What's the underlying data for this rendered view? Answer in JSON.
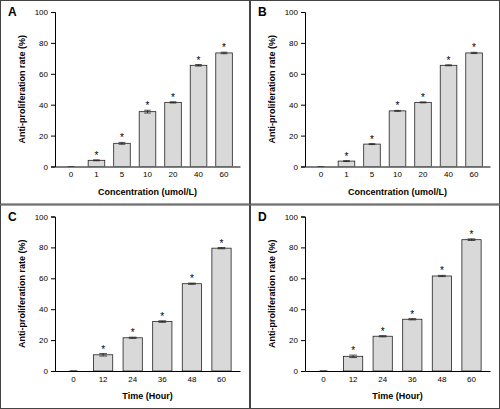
{
  "chart_data": [
    {
      "type": "bar",
      "title": "A",
      "x_label": "Concentration (umol/L)",
      "y_label": "Anti-proliferation rate (%)",
      "categories": [
        "0",
        "1",
        "5",
        "10",
        "20",
        "40",
        "60"
      ],
      "values": [
        0,
        4,
        15,
        35.5,
        41.5,
        65.5,
        73.5
      ],
      "errors": [
        0,
        0.3,
        0.6,
        0.9,
        0.4,
        0.5,
        0.5
      ],
      "annotations": [
        null,
        "*",
        "*",
        "*",
        "*",
        "*",
        "*"
      ],
      "color": "#d9d9d9",
      "ylim": [
        0,
        100
      ],
      "yticks": [
        0,
        20,
        40,
        60,
        80,
        100
      ]
    },
    {
      "type": "bar",
      "title": "B",
      "x_label": "Concentration (umol/L)",
      "y_label": "Anti-proliferation rate (%)",
      "categories": [
        "0",
        "1",
        "5",
        "10",
        "20",
        "40",
        "60"
      ],
      "values": [
        0,
        3.5,
        14.5,
        36,
        41.5,
        65.5,
        73.5
      ],
      "errors": [
        0,
        0.3,
        0.3,
        0.3,
        0.3,
        0.3,
        0.4
      ],
      "annotations": [
        null,
        "*",
        "*",
        "*",
        "*",
        "*",
        "*"
      ],
      "color": "#d9d9d9",
      "ylim": [
        0,
        100
      ],
      "yticks": [
        0,
        20,
        40,
        60,
        80,
        100
      ]
    },
    {
      "type": "bar",
      "title": "C",
      "x_label": "Time (Hour)",
      "y_label": "Anti-proliferation rate (%)",
      "categories": [
        "0",
        "12",
        "24",
        "36",
        "48",
        "60"
      ],
      "values": [
        0,
        10.5,
        21.5,
        32,
        56.5,
        79.5
      ],
      "errors": [
        0,
        0.8,
        0.4,
        0.5,
        0.4,
        0.4
      ],
      "annotations": [
        null,
        "*",
        "*",
        "*",
        "*",
        "*"
      ],
      "color": "#d9d9d9",
      "ylim": [
        0,
        100
      ],
      "yticks": [
        0,
        20,
        40,
        60,
        80,
        100
      ]
    },
    {
      "type": "bar",
      "title": "D",
      "x_label": "Time (Hour)",
      "y_label": "Anti-proliferation rate (%)",
      "categories": [
        "0",
        "12",
        "24",
        "36",
        "48",
        "60"
      ],
      "values": [
        0,
        9.5,
        22.5,
        33.5,
        61.5,
        85
      ],
      "errors": [
        0,
        0.8,
        0.4,
        0.4,
        0.4,
        0.5
      ],
      "annotations": [
        null,
        "*",
        "*",
        "*",
        "*",
        "*"
      ],
      "color": "#d9d9d9",
      "ylim": [
        0,
        100
      ],
      "yticks": [
        0,
        20,
        40,
        60,
        80,
        100
      ]
    }
  ]
}
